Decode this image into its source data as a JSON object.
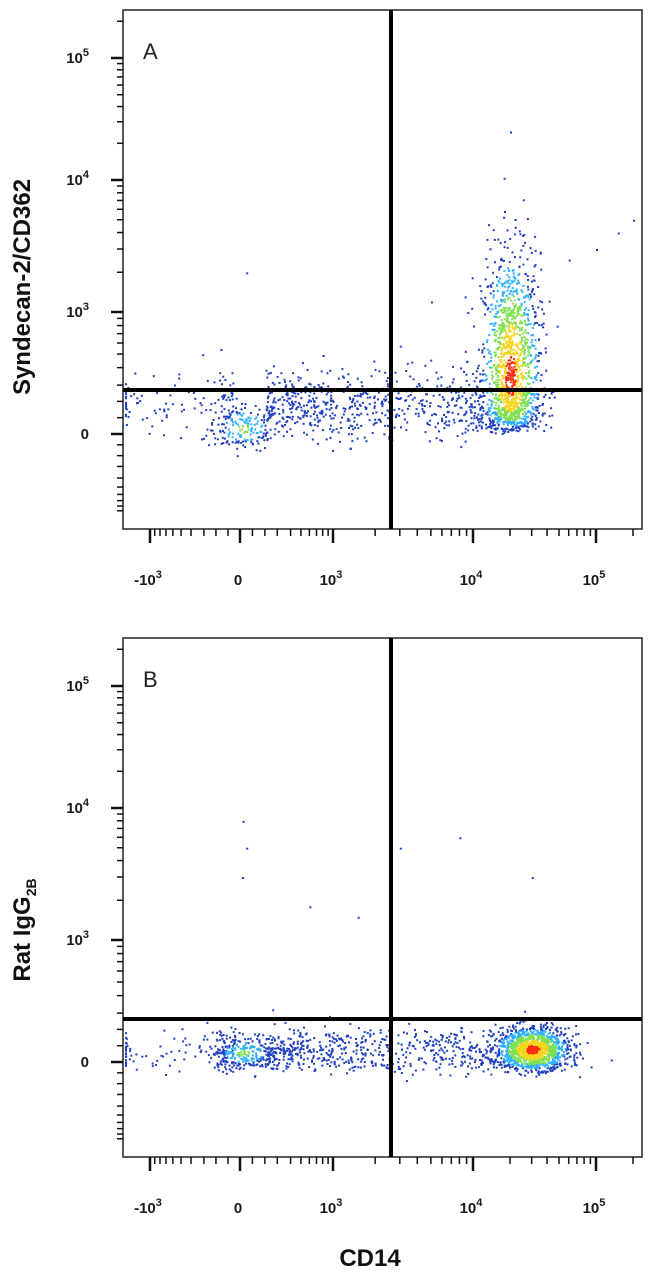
{
  "colors": {
    "density_low": "#1f3fbf",
    "density_mid": "#2fb0ff",
    "density_high": "#7fe04f",
    "density_peak": "#ff2a10",
    "gate_lines": "#000000"
  },
  "chart_data": [
    {
      "type": "scatter",
      "panel_label": "A",
      "xlabel": "",
      "ylabel": "Syndecan-2/CD362",
      "x_scale": "logicle",
      "y_scale": "logicle",
      "x_ticks": [
        "-10^3",
        "0",
        "10^3",
        "10^4",
        "10^5"
      ],
      "y_ticks": [
        "0",
        "10^3",
        "10^4",
        "10^5"
      ],
      "xlim": [
        -2000,
        250000
      ],
      "ylim": [
        -1000,
        250000
      ],
      "quadrant_gate": {
        "x": 2500,
        "y": 250
      },
      "populations": [
        {
          "name": "",
          "x_center": 20,
          "y_center": 40,
          "x_spread": 150,
          "y_spread": 90,
          "points": 180,
          "density": "moderate"
        },
        {
          "name": "",
          "x_center": 20000,
          "y_center": 350,
          "x_spread": 0.12,
          "y_spread": 0.45,
          "points": 1400,
          "density": "high"
        },
        {
          "name": "",
          "x_range": [
            200,
            12000
          ],
          "y_center": 180,
          "y_spread": 110,
          "points": 700,
          "density": "low"
        }
      ],
      "sparse_tail": [
        [
          30000,
          1500
        ],
        [
          60000,
          2500
        ],
        [
          100000,
          3000
        ],
        [
          150000,
          4000
        ],
        [
          200000,
          5000
        ],
        [
          20000,
          25000
        ],
        [
          10000,
          800
        ],
        [
          5000,
          1200
        ],
        [
          50,
          2000
        ]
      ]
    },
    {
      "type": "scatter",
      "panel_label": "B",
      "xlabel": "CD14",
      "ylabel": "Rat IgG",
      "ylabel_sub": "2B",
      "x_scale": "logicle",
      "y_scale": "logicle",
      "x_ticks": [
        "-10^3",
        "0",
        "10^3",
        "10^4",
        "10^5"
      ],
      "y_ticks": [
        "0",
        "10^3",
        "10^4",
        "10^5"
      ],
      "xlim": [
        -2000,
        250000
      ],
      "ylim": [
        -1000,
        250000
      ],
      "quadrant_gate": {
        "x": 2500,
        "y": 250
      },
      "populations": [
        {
          "name": "",
          "x_center": 20,
          "y_center": 60,
          "x_spread": 150,
          "y_spread": 60,
          "points": 260,
          "density": "moderate"
        },
        {
          "name": "",
          "x_center": 30000,
          "y_center": 80,
          "x_spread": 0.15,
          "y_spread": 70,
          "points": 1300,
          "density": "high"
        },
        {
          "name": "",
          "x_range": [
            200,
            15000
          ],
          "y_center": 70,
          "y_spread": 70,
          "points": 650,
          "density": "low"
        }
      ],
      "sparse_tail": [
        [
          20,
          8000
        ],
        [
          50,
          5000
        ],
        [
          15,
          3000
        ],
        [
          3000,
          5000
        ],
        [
          8000,
          6000
        ],
        [
          30000,
          3000
        ],
        [
          1500,
          1500
        ],
        [
          600,
          1800
        ]
      ]
    }
  ]
}
